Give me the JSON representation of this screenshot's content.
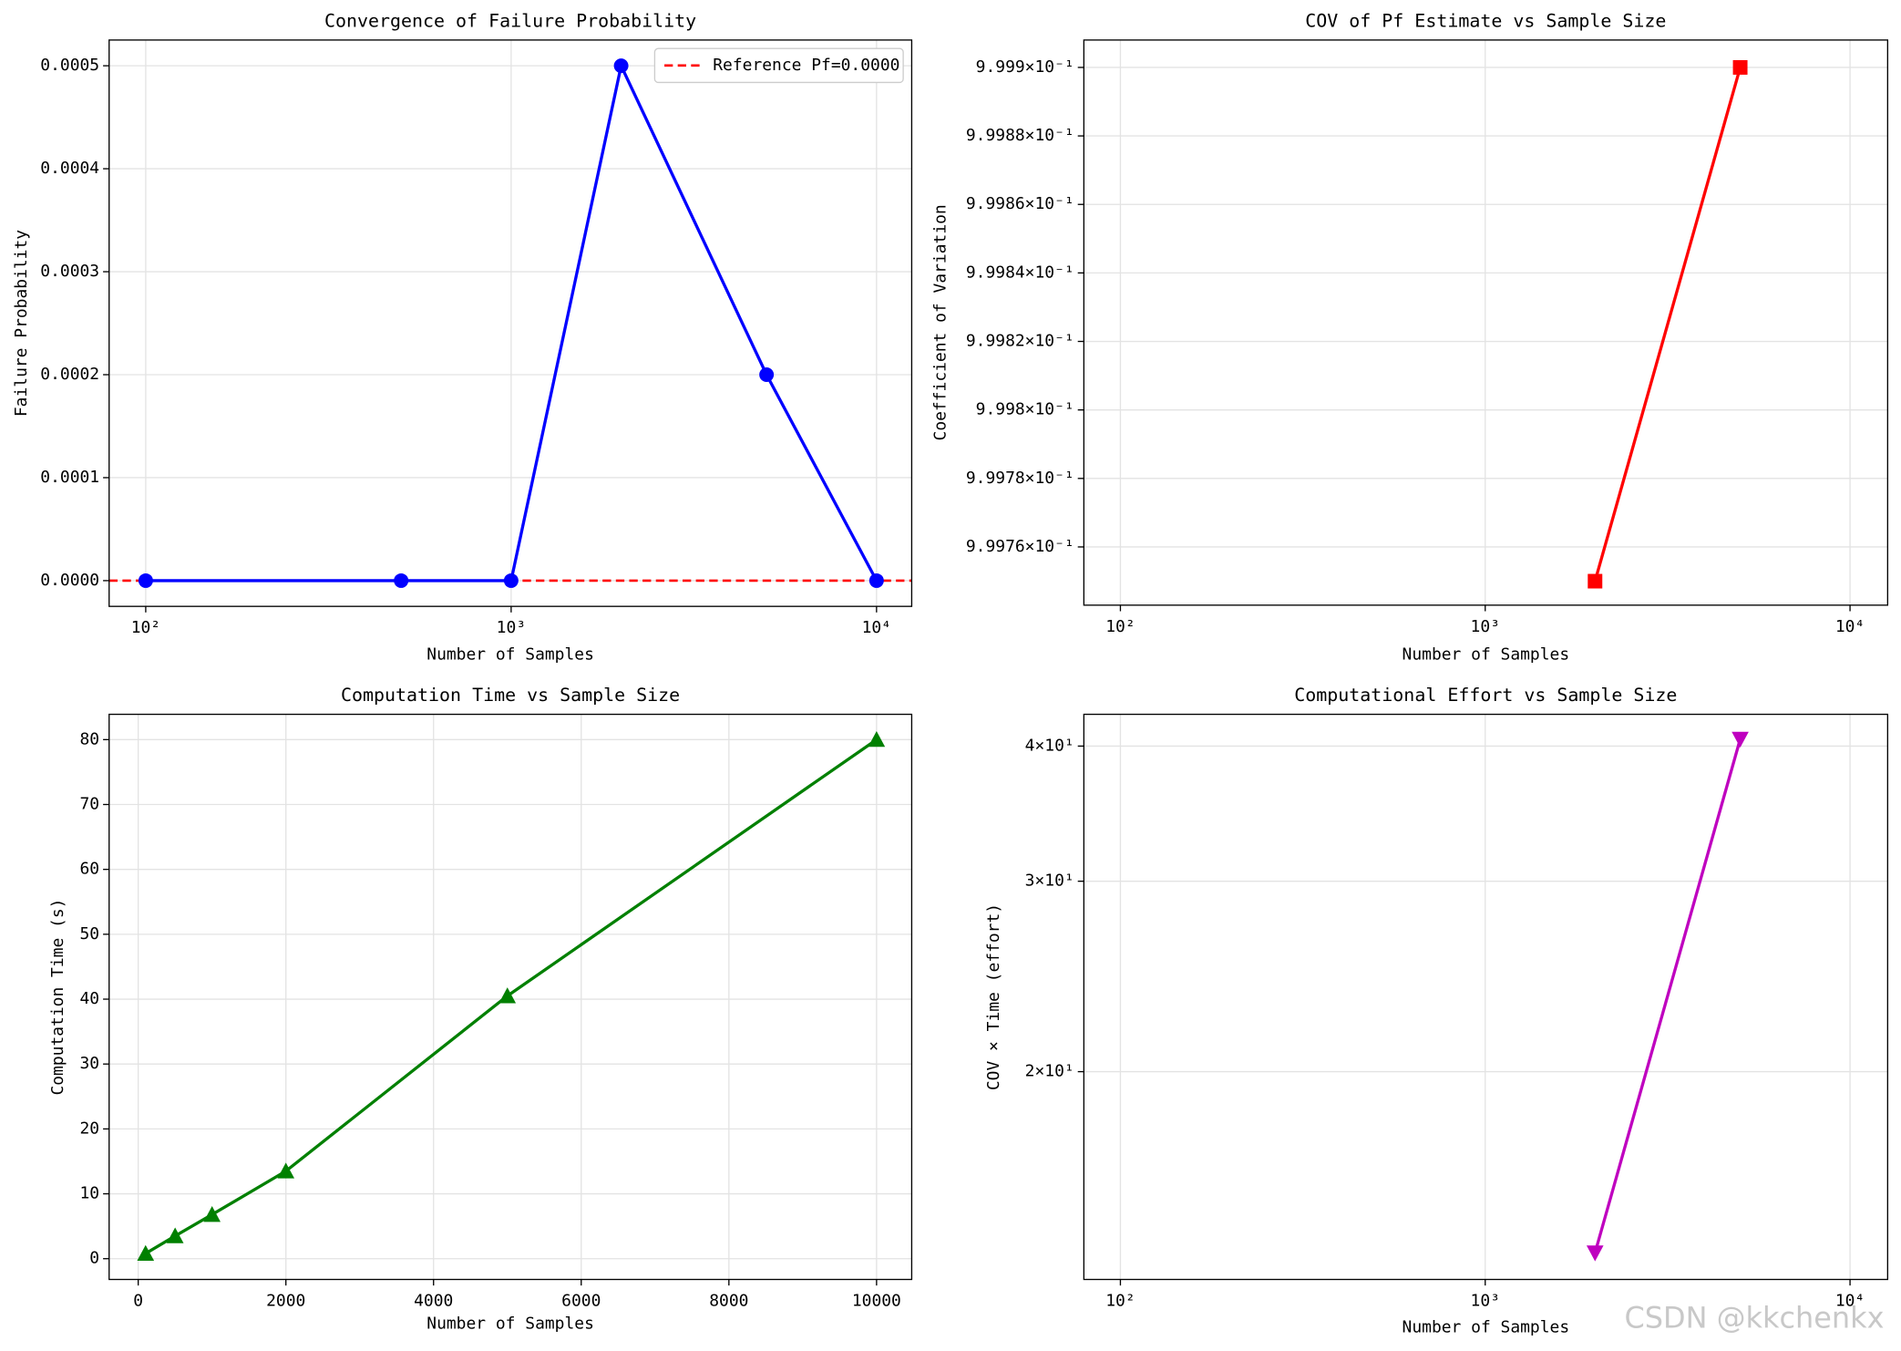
{
  "chart_data": [
    {
      "type": "line",
      "title": "Convergence of Failure Probability",
      "xlabel": "Number of Samples",
      "ylabel": "Failure Probability",
      "x": [
        100,
        500,
        1000,
        2000,
        5000,
        10000
      ],
      "xlog": true,
      "xlim": [
        79.4,
        12480
      ],
      "xticks": [
        {
          "value": 100,
          "label": "10²"
        },
        {
          "value": 1000,
          "label": "10³"
        },
        {
          "value": 10000,
          "label": "10⁴"
        }
      ],
      "ylim": [
        -2.5e-05,
        0.000525
      ],
      "yticks": [
        {
          "value": 0,
          "label": "0.0000"
        },
        {
          "value": 0.0001,
          "label": "0.0001"
        },
        {
          "value": 0.0002,
          "label": "0.0002"
        },
        {
          "value": 0.0003,
          "label": "0.0003"
        },
        {
          "value": 0.0004,
          "label": "0.0004"
        },
        {
          "value": 0.0005,
          "label": "0.0005"
        }
      ],
      "series": [
        {
          "color": "#0000ff",
          "marker": "circle",
          "values": [
            0,
            0,
            0,
            0.0005,
            0.0002,
            0
          ]
        }
      ],
      "reference": {
        "value": 0,
        "label": "Reference Pf=0.0000",
        "color": "#ff0000"
      },
      "grid": true,
      "legend": "upper right"
    },
    {
      "type": "line",
      "title": "COV of Pf Estimate vs Sample Size",
      "xlabel": "Number of Samples",
      "ylabel": "Coefficient of Variation",
      "x": [
        100,
        500,
        1000,
        2000,
        5000,
        10000
      ],
      "xlog": true,
      "ylog": true,
      "xlim": [
        79.4,
        12680
      ],
      "xticks": [
        {
          "value": 100,
          "label": "10²"
        },
        {
          "value": 1000,
          "label": "10³"
        },
        {
          "value": 10000,
          "label": "10⁴"
        }
      ],
      "ylim": [
        0.999743,
        0.999908
      ],
      "yticks": [
        {
          "value": 0.99976,
          "label": "9.9976×10⁻¹"
        },
        {
          "value": 0.99978,
          "label": "9.9978×10⁻¹"
        },
        {
          "value": 0.9998,
          "label": "9.998×10⁻¹"
        },
        {
          "value": 0.99982,
          "label": "9.9982×10⁻¹"
        },
        {
          "value": 0.99984,
          "label": "9.9984×10⁻¹"
        },
        {
          "value": 0.99986,
          "label": "9.9986×10⁻¹"
        },
        {
          "value": 0.99988,
          "label": "9.9988×10⁻¹"
        },
        {
          "value": 0.9999,
          "label": "9.999×10⁻¹"
        }
      ],
      "series": [
        {
          "color": "#ff0000",
          "marker": "square",
          "values": [
            null,
            null,
            null,
            0.99975,
            0.9999,
            null
          ]
        }
      ],
      "grid": true
    },
    {
      "type": "line",
      "title": "Computation Time vs Sample Size",
      "xlabel": "Number of Samples",
      "ylabel": "Computation Time (s)",
      "x": [
        100,
        500,
        1000,
        2000,
        5000,
        10000
      ],
      "xlim": [
        -394,
        10476
      ],
      "xticks": [
        0,
        2000,
        4000,
        6000,
        8000,
        10000
      ],
      "ylim": [
        -3.2,
        83.9
      ],
      "yticks": [
        0,
        10,
        20,
        30,
        40,
        50,
        60,
        70,
        80
      ],
      "series": [
        {
          "color": "#008000",
          "marker": "triangle-up",
          "values": [
            0.8,
            3.5,
            6.8,
            13.5,
            40.5,
            80
          ]
        }
      ],
      "grid": true
    },
    {
      "type": "line",
      "title": "Computational Effort vs Sample Size",
      "xlabel": "Number of Samples",
      "ylabel": "COV × Time (effort)",
      "x": [
        100,
        500,
        1000,
        2000,
        5000,
        10000
      ],
      "xlog": true,
      "ylog": true,
      "xlim": [
        79.4,
        12680
      ],
      "xticks": [
        {
          "value": 100,
          "label": "10²"
        },
        {
          "value": 1000,
          "label": "10³"
        },
        {
          "value": 10000,
          "label": "10⁴"
        }
      ],
      "ylim": [
        12.85,
        42.8
      ],
      "yticks": [
        {
          "value": 20,
          "label": "2×10¹"
        },
        {
          "value": 30,
          "label": "3×10¹"
        },
        {
          "value": 40,
          "label": "4×10¹"
        }
      ],
      "series": [
        {
          "color": "#bf00bf",
          "marker": "triangle-down",
          "values": [
            null,
            null,
            null,
            13.6,
            40.6,
            null
          ]
        }
      ],
      "grid": true
    }
  ],
  "watermark": "CSDN @kkchenkx"
}
